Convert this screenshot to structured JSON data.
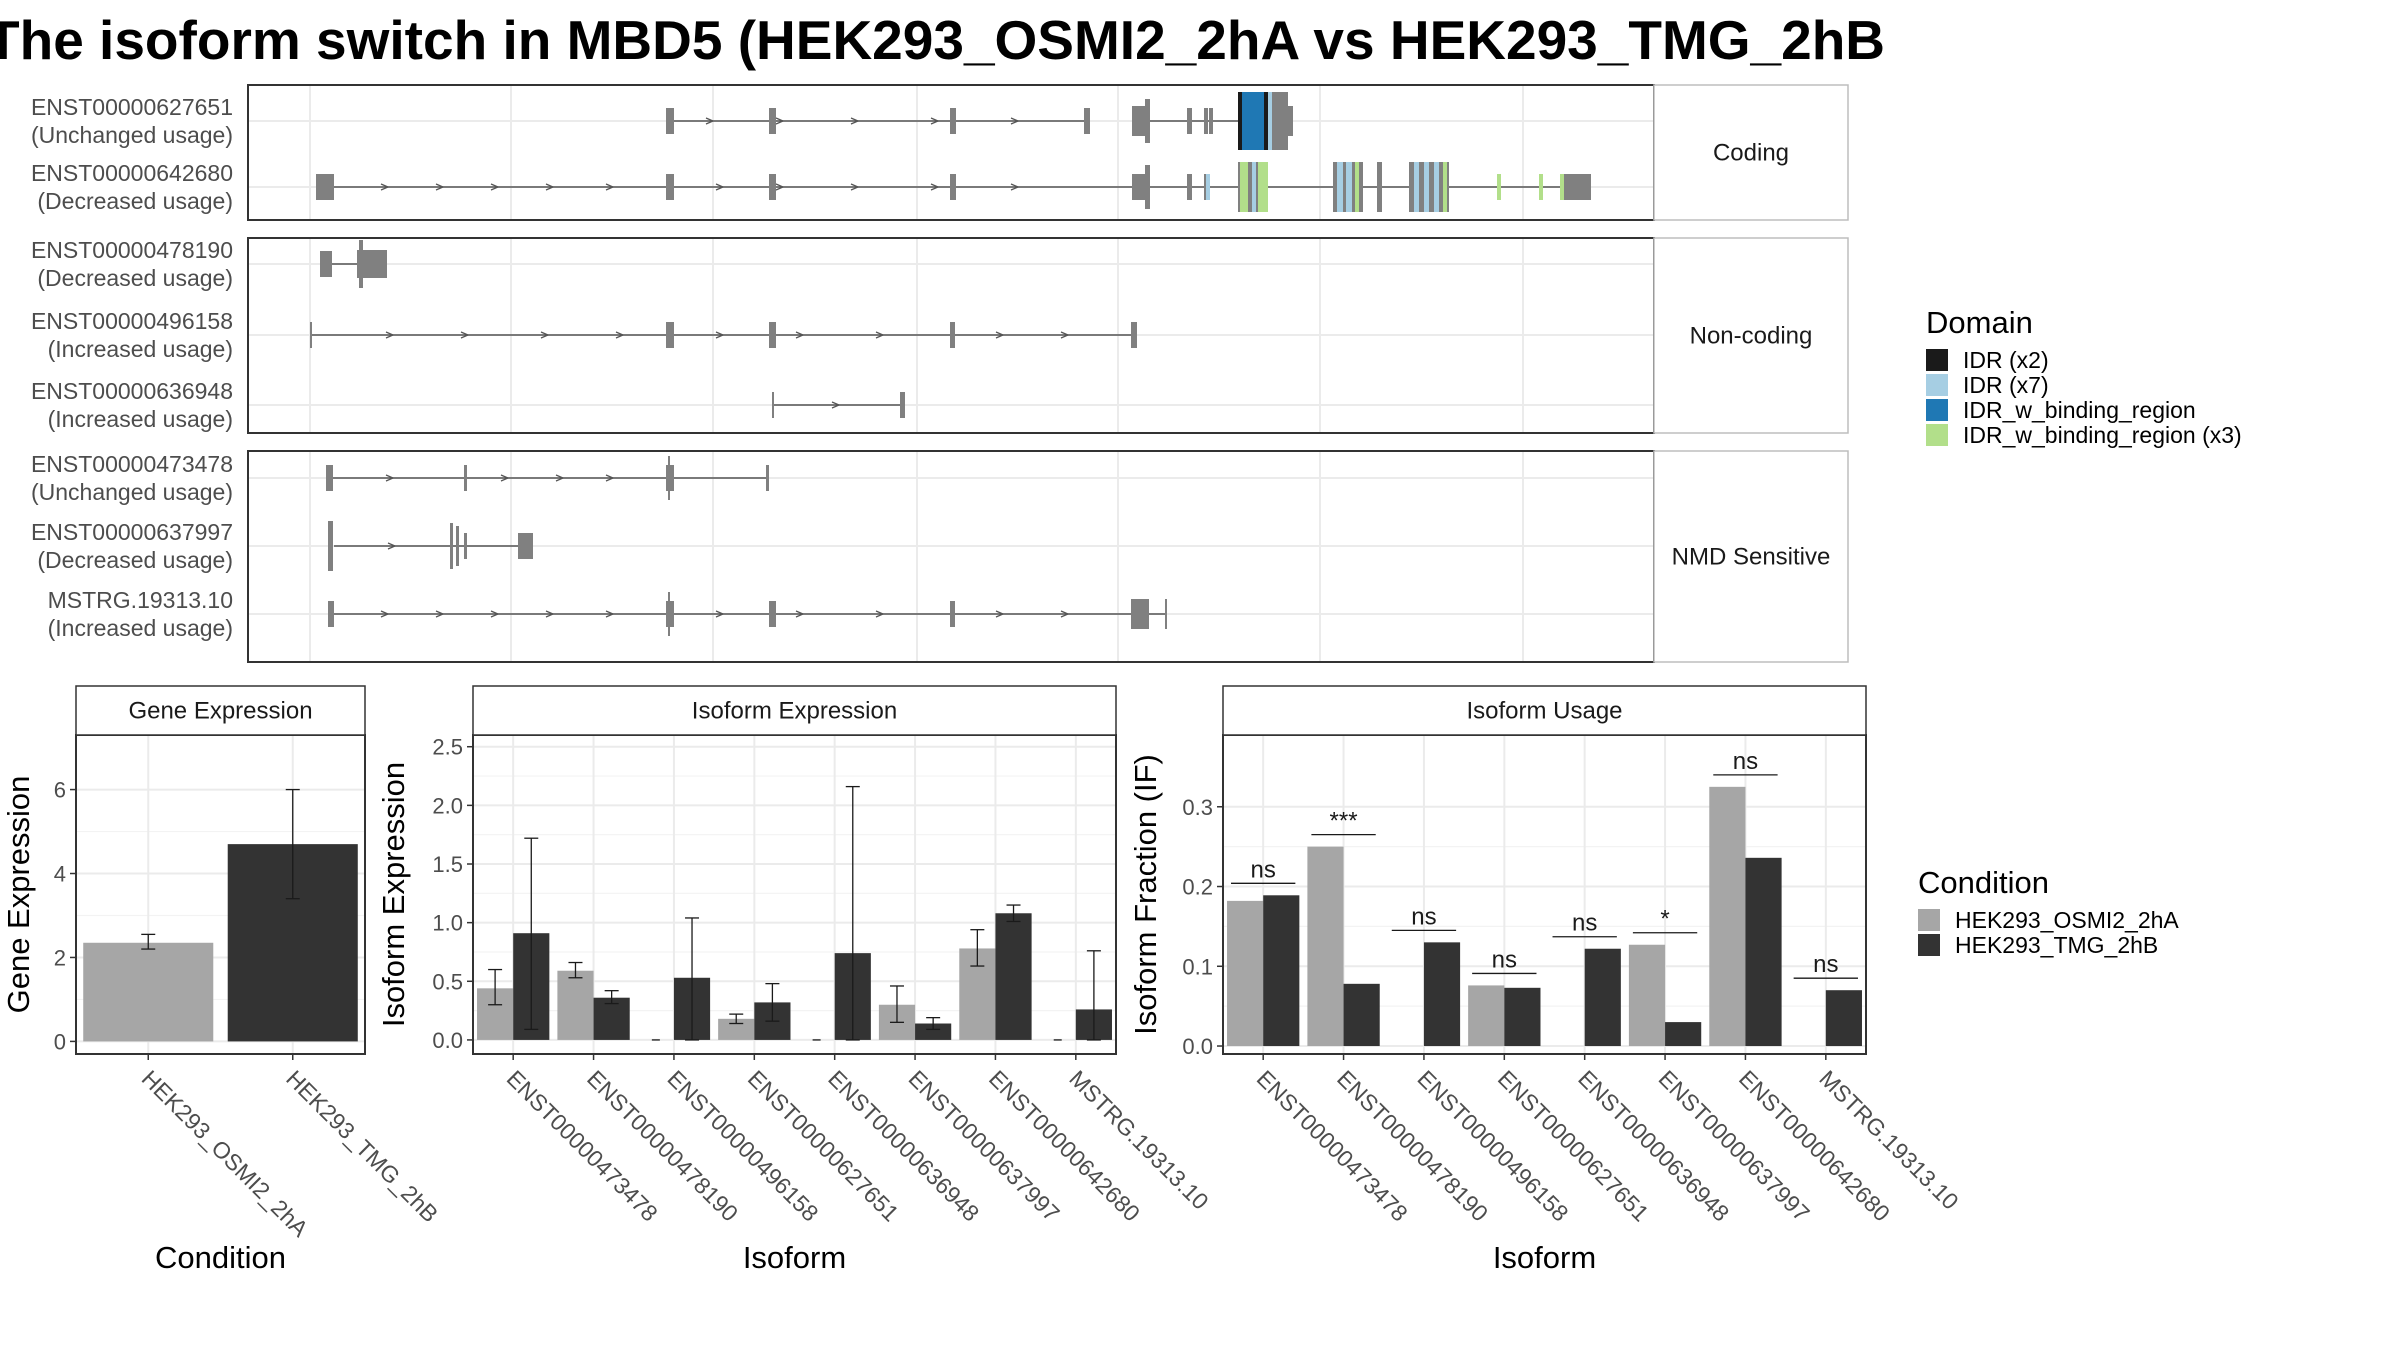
{
  "title": "The isoform switch in MBD5 (HEK293_OSMI2_2hA vs HEK293_TMG_2hB",
  "colors": {
    "grey_cond": "#a6a6a6",
    "dark_cond": "#333333",
    "transcript": "#808080",
    "idr_x2": "#1a1a1a",
    "idr_x7": "#a6cee3",
    "idr_binding": "#1f78b4",
    "idr_binding_x3": "#b2df8a"
  },
  "transcript_panels": [
    {
      "facet": "Coding",
      "transcripts": [
        {
          "id": "ENST00000627651",
          "usage": "(Unchanged usage)"
        },
        {
          "id": "ENST00000642680",
          "usage": "(Decreased usage)"
        }
      ]
    },
    {
      "facet": "Non-coding",
      "transcripts": [
        {
          "id": "ENST00000478190",
          "usage": "(Decreased usage)"
        },
        {
          "id": "ENST00000496158",
          "usage": "(Increased usage)"
        },
        {
          "id": "ENST00000636948",
          "usage": "(Increased usage)"
        }
      ]
    },
    {
      "facet": "NMD Sensitive",
      "transcripts": [
        {
          "id": "ENST00000473478",
          "usage": "(Unchanged usage)"
        },
        {
          "id": "ENST00000637997",
          "usage": "(Decreased usage)"
        },
        {
          "id": "MSTRG.19313.10",
          "usage": "(Increased usage)"
        }
      ]
    }
  ],
  "domain_legend": {
    "title": "Domain",
    "items": [
      {
        "label": "IDR (x2)",
        "color": "#1a1a1a"
      },
      {
        "label": "IDR (x7)",
        "color": "#a6cee3"
      },
      {
        "label": "IDR_w_binding_region",
        "color": "#1f78b4"
      },
      {
        "label": "IDR_w_binding_region (x3)",
        "color": "#b2df8a"
      }
    ]
  },
  "condition_legend": {
    "title": "Condition",
    "items": [
      {
        "label": "HEK293_OSMI2_2hA",
        "color": "#a6a6a6"
      },
      {
        "label": "HEK293_TMG_2hB",
        "color": "#333333"
      }
    ]
  },
  "chart_data": [
    {
      "type": "bar",
      "title": "Gene Expression",
      "xlabel": "Condition",
      "ylabel": "Gene Expression",
      "categories": [
        "HEK293_OSMI2_2hA",
        "HEK293_TMG_2hB"
      ],
      "values": [
        2.35,
        4.7
      ],
      "errors": [
        [
          2.2,
          2.55
        ],
        [
          3.4,
          6.0
        ]
      ],
      "ylim": [
        -0.3,
        7.3
      ],
      "yticks": [
        0,
        2,
        4,
        6
      ]
    },
    {
      "type": "bar",
      "title": "Isoform Expression",
      "xlabel": "Isoform",
      "ylabel": "Isoform Expression",
      "categories": [
        "ENST00000473478",
        "ENST00000478190",
        "ENST00000496158",
        "ENST00000627651",
        "ENST00000636948",
        "ENST00000637997",
        "ENST00000642680",
        "MSTRG.19313.10"
      ],
      "series": [
        {
          "name": "HEK293_OSMI2_2hA",
          "values": [
            0.44,
            0.59,
            0.0,
            0.18,
            0.0,
            0.3,
            0.78,
            0.0
          ],
          "errors": [
            [
              0.3,
              0.6
            ],
            [
              0.53,
              0.66
            ],
            [
              0.0,
              0.0
            ],
            [
              0.14,
              0.22
            ],
            [
              0.0,
              0.0
            ],
            [
              0.15,
              0.46
            ],
            [
              0.63,
              0.94
            ],
            [
              0.0,
              0.0
            ]
          ]
        },
        {
          "name": "HEK293_TMG_2hB",
          "values": [
            0.91,
            0.36,
            0.53,
            0.32,
            0.74,
            0.14,
            1.08,
            0.26
          ],
          "errors": [
            [
              0.09,
              1.72
            ],
            [
              0.31,
              0.42
            ],
            [
              0.0,
              1.04
            ],
            [
              0.16,
              0.48
            ],
            [
              0.0,
              2.16
            ],
            [
              0.09,
              0.19
            ],
            [
              1.01,
              1.15
            ],
            [
              0.0,
              0.76
            ]
          ]
        }
      ],
      "ylim": [
        -0.12,
        2.6
      ],
      "yticks": [
        0.0,
        0.5,
        1.0,
        1.5,
        2.0,
        2.5
      ]
    },
    {
      "type": "bar",
      "title": "Isoform Usage",
      "xlabel": "Isoform",
      "ylabel": "Isoform Fraction (IF)",
      "categories": [
        "ENST00000473478",
        "ENST00000478190",
        "ENST00000496158",
        "ENST00000627651",
        "ENST00000636948",
        "ENST00000637997",
        "ENST00000642680",
        "MSTRG.19313.10"
      ],
      "series": [
        {
          "name": "HEK293_OSMI2_2hA",
          "values": [
            0.182,
            0.25,
            0.0,
            0.076,
            0.0,
            0.127,
            0.325,
            0.0
          ]
        },
        {
          "name": "HEK293_TMG_2hB",
          "values": [
            0.189,
            0.078,
            0.13,
            0.073,
            0.122,
            0.03,
            0.236,
            0.07
          ]
        }
      ],
      "significance": [
        "ns",
        "***",
        "ns",
        "ns",
        "ns",
        "*",
        "ns",
        "ns"
      ],
      "ylim": [
        -0.01,
        0.39
      ],
      "yticks": [
        0.0,
        0.1,
        0.2,
        0.3
      ]
    }
  ]
}
